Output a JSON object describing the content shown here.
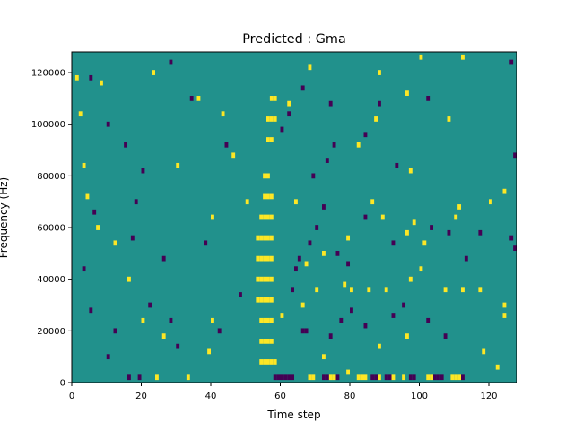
{
  "chart_data": {
    "type": "heatmap",
    "title": "Predicted : Gma",
    "xlabel": "Time step",
    "ylabel": "Frequency (Hz)",
    "xlim": [
      0,
      128
    ],
    "ylim": [
      0,
      128000
    ],
    "xticks": [
      0,
      20,
      40,
      60,
      80,
      100,
      120
    ],
    "xtick_labels": [
      "0",
      "20",
      "40",
      "60",
      "80",
      "100",
      "120"
    ],
    "yticks": [
      0,
      20000,
      40000,
      60000,
      80000,
      100000,
      120000
    ],
    "ytick_labels": [
      "0",
      "20000",
      "40000",
      "60000",
      "80000",
      "100000",
      "120000"
    ],
    "colormap": [
      "#440154",
      "#21918c",
      "#fde725"
    ],
    "legend": "none",
    "grid": false,
    "background_class": 1,
    "value_classes": [
      0,
      1,
      2
    ],
    "cell_size": {
      "time": 1,
      "frequency": 2000
    },
    "cells": [
      [
        54,
        8000,
        2
      ],
      [
        55,
        8000,
        2
      ],
      [
        56,
        8000,
        2
      ],
      [
        57,
        8000,
        2
      ],
      [
        58,
        8000,
        2
      ],
      [
        54,
        16000,
        2
      ],
      [
        55,
        16000,
        2
      ],
      [
        56,
        16000,
        2
      ],
      [
        57,
        16000,
        2
      ],
      [
        54,
        24000,
        2
      ],
      [
        55,
        24000,
        2
      ],
      [
        56,
        24000,
        2
      ],
      [
        57,
        24000,
        2
      ],
      [
        53,
        32000,
        2
      ],
      [
        54,
        32000,
        2
      ],
      [
        55,
        32000,
        2
      ],
      [
        56,
        32000,
        2
      ],
      [
        57,
        32000,
        2
      ],
      [
        53,
        40000,
        2
      ],
      [
        54,
        40000,
        2
      ],
      [
        55,
        40000,
        2
      ],
      [
        56,
        40000,
        2
      ],
      [
        57,
        40000,
        2
      ],
      [
        53,
        48000,
        2
      ],
      [
        54,
        48000,
        2
      ],
      [
        55,
        48000,
        2
      ],
      [
        56,
        48000,
        2
      ],
      [
        57,
        48000,
        2
      ],
      [
        53,
        56000,
        2
      ],
      [
        54,
        56000,
        2
      ],
      [
        55,
        56000,
        2
      ],
      [
        56,
        56000,
        2
      ],
      [
        57,
        56000,
        2
      ],
      [
        54,
        64000,
        2
      ],
      [
        55,
        64000,
        2
      ],
      [
        56,
        64000,
        2
      ],
      [
        57,
        64000,
        2
      ],
      [
        55,
        72000,
        2
      ],
      [
        56,
        72000,
        2
      ],
      [
        57,
        72000,
        2
      ],
      [
        55,
        80000,
        2
      ],
      [
        56,
        80000,
        2
      ],
      [
        56,
        94000,
        2
      ],
      [
        57,
        94000,
        2
      ],
      [
        56,
        102000,
        2
      ],
      [
        57,
        102000,
        2
      ],
      [
        58,
        102000,
        2
      ],
      [
        57,
        110000,
        2
      ],
      [
        58,
        110000,
        2
      ],
      [
        24,
        2000,
        2
      ],
      [
        26,
        18000,
        2
      ],
      [
        33,
        2000,
        2
      ],
      [
        39,
        12000,
        2
      ],
      [
        40,
        24000,
        2
      ],
      [
        68,
        2000,
        2
      ],
      [
        69,
        2000,
        2
      ],
      [
        74,
        2000,
        2
      ],
      [
        75,
        2000,
        2
      ],
      [
        82,
        2000,
        2
      ],
      [
        83,
        2000,
        2
      ],
      [
        84,
        2000,
        2
      ],
      [
        88,
        2000,
        2
      ],
      [
        92,
        2000,
        2
      ],
      [
        95,
        2000,
        2
      ],
      [
        102,
        2000,
        2
      ],
      [
        103,
        2000,
        2
      ],
      [
        109,
        2000,
        2
      ],
      [
        110,
        2000,
        2
      ],
      [
        111,
        2000,
        2
      ],
      [
        79,
        4000,
        2
      ],
      [
        72,
        10000,
        2
      ],
      [
        88,
        14000,
        2
      ],
      [
        96,
        18000,
        2
      ],
      [
        60,
        26000,
        2
      ],
      [
        66,
        30000,
        2
      ],
      [
        70,
        36000,
        2
      ],
      [
        78,
        38000,
        2
      ],
      [
        80,
        36000,
        2
      ],
      [
        85,
        36000,
        2
      ],
      [
        90,
        36000,
        2
      ],
      [
        97,
        40000,
        2
      ],
      [
        100,
        44000,
        2
      ],
      [
        107,
        36000,
        2
      ],
      [
        112,
        36000,
        2
      ],
      [
        117,
        36000,
        2
      ],
      [
        124,
        30000,
        2
      ],
      [
        124,
        26000,
        2
      ],
      [
        118,
        12000,
        2
      ],
      [
        122,
        6000,
        2
      ],
      [
        67,
        46000,
        2
      ],
      [
        72,
        50000,
        2
      ],
      [
        79,
        56000,
        2
      ],
      [
        96,
        58000,
        2
      ],
      [
        98,
        62000,
        2
      ],
      [
        101,
        54000,
        2
      ],
      [
        89,
        64000,
        2
      ],
      [
        86,
        70000,
        2
      ],
      [
        110,
        64000,
        2
      ],
      [
        111,
        68000,
        2
      ],
      [
        120,
        70000,
        2
      ],
      [
        124,
        74000,
        2
      ],
      [
        97,
        82000,
        2
      ],
      [
        82,
        92000,
        2
      ],
      [
        87,
        102000,
        2
      ],
      [
        96,
        112000,
        2
      ],
      [
        108,
        102000,
        2
      ],
      [
        112,
        126000,
        2
      ],
      [
        100,
        126000,
        2
      ],
      [
        88,
        120000,
        2
      ],
      [
        68,
        122000,
        2
      ],
      [
        62,
        108000,
        2
      ],
      [
        43,
        104000,
        2
      ],
      [
        46,
        88000,
        2
      ],
      [
        50,
        70000,
        2
      ],
      [
        64,
        70000,
        2
      ],
      [
        20,
        24000,
        2
      ],
      [
        16,
        40000,
        2
      ],
      [
        12,
        54000,
        2
      ],
      [
        7,
        60000,
        2
      ],
      [
        4,
        72000,
        2
      ],
      [
        3,
        84000,
        2
      ],
      [
        2,
        104000,
        2
      ],
      [
        8,
        116000,
        2
      ],
      [
        1,
        118000,
        2
      ],
      [
        23,
        120000,
        2
      ],
      [
        36,
        110000,
        2
      ],
      [
        30,
        84000,
        2
      ],
      [
        40,
        64000,
        2
      ],
      [
        58,
        2000,
        0
      ],
      [
        59,
        2000,
        0
      ],
      [
        60,
        2000,
        0
      ],
      [
        61,
        2000,
        0
      ],
      [
        62,
        2000,
        0
      ],
      [
        63,
        2000,
        0
      ],
      [
        72,
        2000,
        0
      ],
      [
        73,
        2000,
        0
      ],
      [
        76,
        2000,
        0
      ],
      [
        86,
        2000,
        0
      ],
      [
        87,
        2000,
        0
      ],
      [
        90,
        2000,
        0
      ],
      [
        91,
        2000,
        0
      ],
      [
        97,
        2000,
        0
      ],
      [
        98,
        2000,
        0
      ],
      [
        104,
        2000,
        0
      ],
      [
        105,
        2000,
        0
      ],
      [
        106,
        2000,
        0
      ],
      [
        112,
        2000,
        0
      ],
      [
        16,
        2000,
        0
      ],
      [
        19,
        2000,
        0
      ],
      [
        66,
        20000,
        0
      ],
      [
        67,
        20000,
        0
      ],
      [
        74,
        18000,
        0
      ],
      [
        77,
        24000,
        0
      ],
      [
        80,
        28000,
        0
      ],
      [
        84,
        22000,
        0
      ],
      [
        92,
        26000,
        0
      ],
      [
        95,
        30000,
        0
      ],
      [
        102,
        24000,
        0
      ],
      [
        107,
        18000,
        0
      ],
      [
        63,
        36000,
        0
      ],
      [
        64,
        44000,
        0
      ],
      [
        65,
        48000,
        0
      ],
      [
        68,
        54000,
        0
      ],
      [
        70,
        60000,
        0
      ],
      [
        72,
        68000,
        0
      ],
      [
        76,
        50000,
        0
      ],
      [
        79,
        46000,
        0
      ],
      [
        84,
        64000,
        0
      ],
      [
        92,
        54000,
        0
      ],
      [
        103,
        60000,
        0
      ],
      [
        108,
        58000,
        0
      ],
      [
        113,
        48000,
        0
      ],
      [
        117,
        58000,
        0
      ],
      [
        126,
        56000,
        0
      ],
      [
        127,
        52000,
        0
      ],
      [
        69,
        80000,
        0
      ],
      [
        73,
        86000,
        0
      ],
      [
        75,
        92000,
        0
      ],
      [
        84,
        96000,
        0
      ],
      [
        93,
        84000,
        0
      ],
      [
        60,
        98000,
        0
      ],
      [
        62,
        104000,
        0
      ],
      [
        66,
        114000,
        0
      ],
      [
        74,
        108000,
        0
      ],
      [
        88,
        108000,
        0
      ],
      [
        102,
        110000,
        0
      ],
      [
        126,
        124000,
        0
      ],
      [
        127,
        88000,
        0
      ],
      [
        44,
        92000,
        0
      ],
      [
        34,
        110000,
        0
      ],
      [
        28,
        124000,
        0
      ],
      [
        15,
        92000,
        0
      ],
      [
        20,
        82000,
        0
      ],
      [
        18,
        70000,
        0
      ],
      [
        17,
        56000,
        0
      ],
      [
        26,
        48000,
        0
      ],
      [
        22,
        30000,
        0
      ],
      [
        28,
        24000,
        0
      ],
      [
        30,
        14000,
        0
      ],
      [
        12,
        20000,
        0
      ],
      [
        10,
        10000,
        0
      ],
      [
        5,
        28000,
        0
      ],
      [
        3,
        44000,
        0
      ],
      [
        6,
        66000,
        0
      ],
      [
        10,
        100000,
        0
      ],
      [
        5,
        118000,
        0
      ],
      [
        38,
        54000,
        0
      ],
      [
        48,
        34000,
        0
      ],
      [
        42,
        20000,
        0
      ]
    ]
  }
}
